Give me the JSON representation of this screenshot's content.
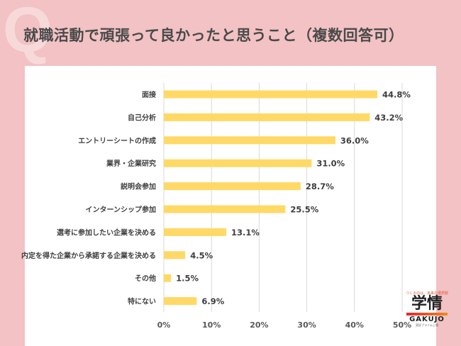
{
  "title": "就職活動で頑張って良かったと思うこと（複数回答可）",
  "q_mark": "Q",
  "logo": {
    "tagline": "つくるのは、未来の選択肢",
    "name": "学情",
    "roman": "GAKUJO",
    "sub": "東証プライム上場"
  },
  "chart_data": {
    "type": "bar",
    "orientation": "horizontal",
    "categories": [
      "面接",
      "自己分析",
      "エントリーシートの作成",
      "業界・企業研究",
      "説明会参加",
      "インターンシップ参加",
      "選考に参加したい企業を決める",
      "内定を得た企業から承諾する企業を決める",
      "その他",
      "特にない"
    ],
    "values": [
      44.8,
      43.2,
      36.0,
      31.0,
      28.7,
      25.5,
      13.1,
      4.5,
      1.5,
      6.9
    ],
    "data_labels": [
      "44.8%",
      "43.2%",
      "36.0%",
      "31.0%",
      "28.7%",
      "25.5%",
      "13.1%",
      "4.5%",
      "1.5%",
      "6.9%"
    ],
    "xlim": [
      0,
      50
    ],
    "ticks": [
      "0%",
      "10%",
      "20%",
      "30%",
      "40%",
      "50%"
    ],
    "grid": true,
    "bar_color": "#ffd966"
  }
}
